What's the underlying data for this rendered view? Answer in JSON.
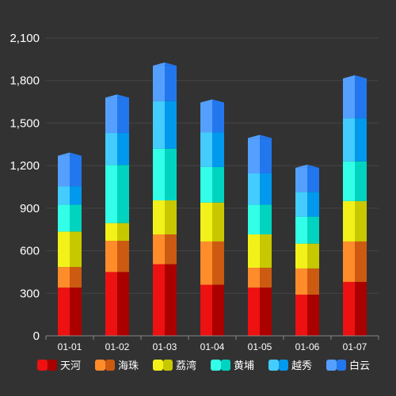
{
  "chart_data": {
    "type": "bar",
    "stacked": true,
    "style": "3d-cylinder-bars",
    "categories": [
      "01-01",
      "01-02",
      "01-03",
      "01-04",
      "01-05",
      "01-06",
      "01-07"
    ],
    "series": [
      {
        "name": "天河",
        "values": [
          340,
          450,
          505,
          360,
          340,
          290,
          380
        ],
        "color_light": "#ee1111",
        "color_dark": "#aa0000"
      },
      {
        "name": "海珠",
        "values": [
          145,
          220,
          210,
          305,
          140,
          185,
          285
        ],
        "color_light": "#ff8c2a",
        "color_dark": "#cc5a10"
      },
      {
        "name": "荔湾",
        "values": [
          250,
          125,
          240,
          275,
          235,
          175,
          285
        ],
        "color_light": "#f2f21a",
        "color_dark": "#c8c800"
      },
      {
        "name": "黄埔",
        "values": [
          190,
          410,
          365,
          250,
          210,
          190,
          280
        ],
        "color_light": "#33ffe8",
        "color_dark": "#00d4c0"
      },
      {
        "name": "越秀",
        "values": [
          130,
          225,
          335,
          245,
          220,
          175,
          305
        ],
        "color_light": "#44ccff",
        "color_dark": "#0099ee"
      },
      {
        "name": "白云",
        "values": [
          215,
          250,
          250,
          210,
          250,
          170,
          280
        ],
        "color_light": "#55a0ff",
        "color_dark": "#2277ee"
      }
    ],
    "y_ticks": [
      "0",
      "300",
      "600",
      "900",
      "1,200",
      "1,500",
      "1,800",
      "2,100"
    ],
    "ylim": [
      0,
      2100
    ],
    "grid": true,
    "legend_position": "bottom",
    "colors": {
      "background": "#323232",
      "grid": "#454545",
      "axis": "#888888",
      "text": "#ffffff"
    }
  }
}
